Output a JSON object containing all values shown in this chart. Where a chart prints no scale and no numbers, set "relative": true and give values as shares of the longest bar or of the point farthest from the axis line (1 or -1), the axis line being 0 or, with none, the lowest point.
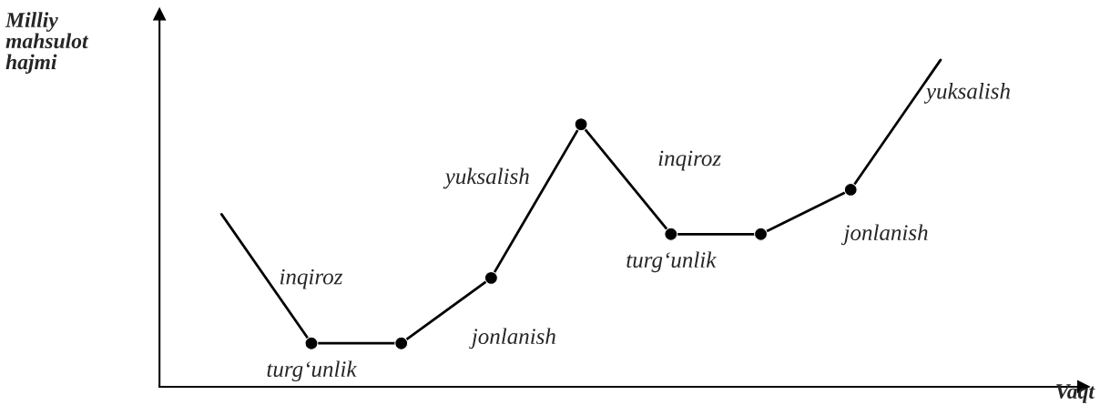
{
  "chart_data": {
    "type": "line",
    "relative": true,
    "xlabel": "Vaqt",
    "ylabel": "Milliy mahsulot hajmi",
    "categories": [
      null,
      null,
      null,
      null,
      null,
      null,
      null,
      null,
      null
    ],
    "series": [
      {
        "color": "#000000",
        "values": [
          0.528,
          0.133,
          0.133,
          0.333,
          0.803,
          0.467,
          0.467,
          0.603,
          1.0
        ]
      }
    ],
    "annotations": [
      "inqiroz",
      "turg‘unlik",
      "jonlanish",
      "yuksalish",
      "inqiroz",
      "turg‘unlik",
      "jonlanish",
      "yuksalish"
    ],
    "marker": "circle",
    "grid": false
  }
}
